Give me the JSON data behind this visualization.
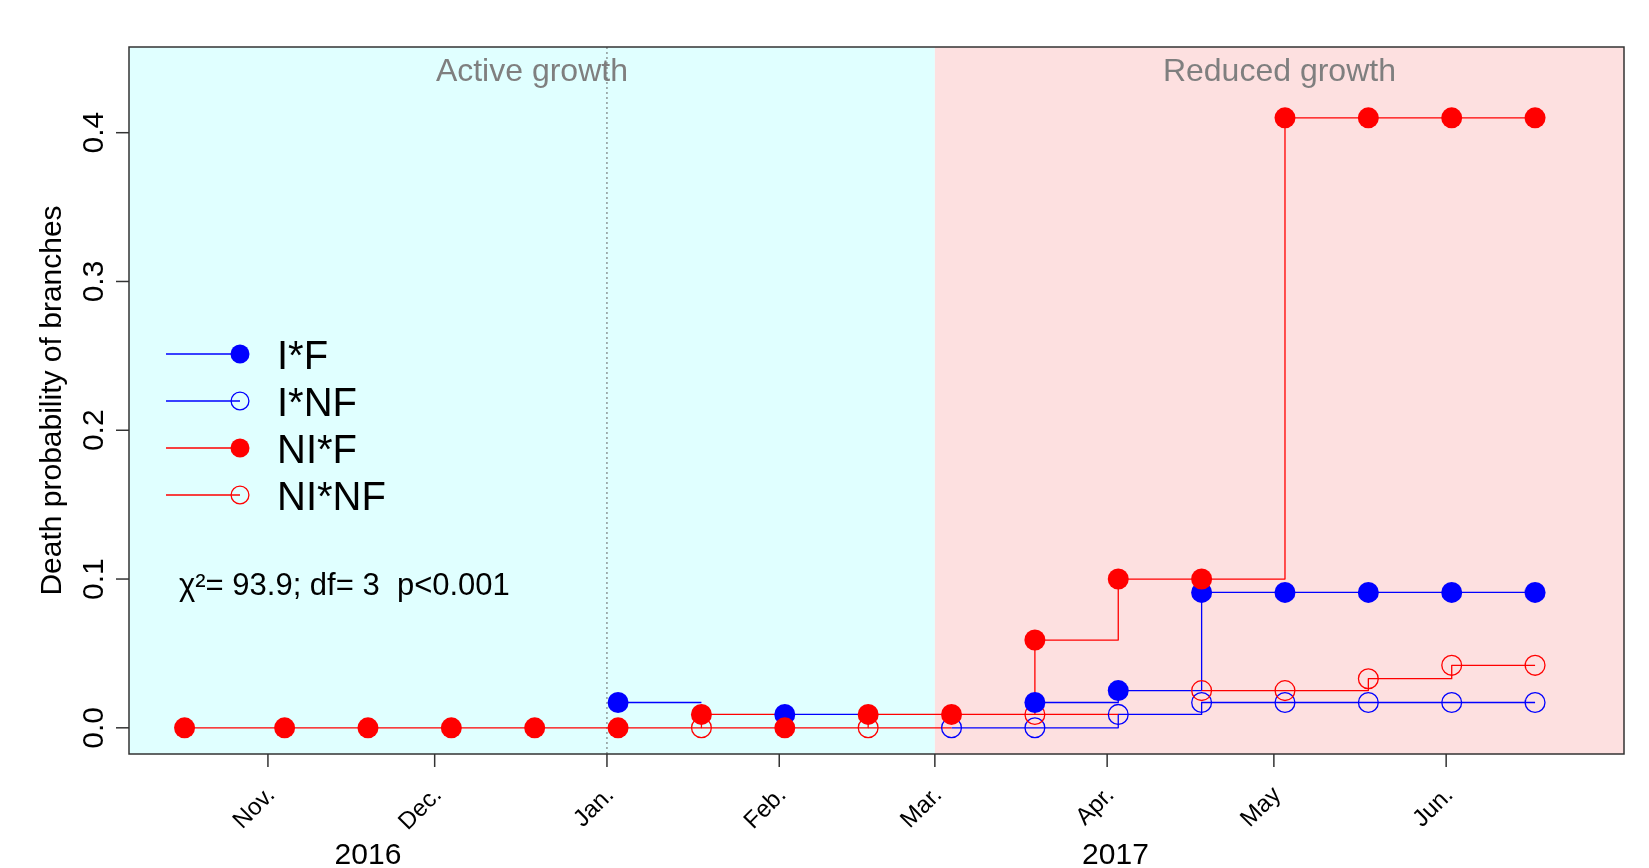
{
  "chart_data": {
    "type": "step",
    "ylabel": "Death probability of branches",
    "x": [
      "2016-10-17",
      "2016-11-04",
      "2016-11-19",
      "2016-12-04",
      "2016-12-19",
      "2017-01-03",
      "2017-01-18",
      "2017-02-02",
      "2017-02-17",
      "2017-03-04",
      "2017-03-19",
      "2017-04-03",
      "2017-04-18",
      "2017-05-03",
      "2017-05-18",
      "2017-06-02",
      "2017-06-17"
    ],
    "series": [
      {
        "name": "I*F",
        "color": "#0000ff",
        "marker": "circle",
        "values": [
          null,
          null,
          null,
          null,
          null,
          0.017,
          null,
          0.009,
          null,
          null,
          0.017,
          0.025,
          0.091,
          0.091,
          0.091,
          0.091,
          0.091
        ]
      },
      {
        "name": "I*NF",
        "color": "#0000ff",
        "marker": "circle-open",
        "values": [
          null,
          null,
          null,
          null,
          null,
          null,
          null,
          null,
          null,
          0,
          0,
          0.009,
          0.017,
          0.017,
          0.017,
          0.017,
          0.017
        ]
      },
      {
        "name": "NI*F",
        "color": "#ff0000",
        "marker": "circle",
        "values": [
          0,
          0,
          0,
          0,
          0,
          0,
          0.009,
          0,
          0.009,
          0.009,
          0.059,
          0.1,
          0.1,
          0.41,
          0.41,
          0.41,
          0.41
        ]
      },
      {
        "name": "NI*NF",
        "color": "#ff0000",
        "marker": "circle-open",
        "values": [
          null,
          null,
          null,
          null,
          null,
          null,
          0,
          null,
          0,
          null,
          0.009,
          null,
          0.025,
          0.025,
          0.033,
          0.042,
          0.042
        ]
      }
    ],
    "xlim": [
      "2016-10-07",
      "2017-07-03"
    ],
    "xticks": [
      {
        "value": "2016-11-01",
        "label": "Nov."
      },
      {
        "value": "2016-12-01",
        "label": "Dec."
      },
      {
        "value": "2017-01-01",
        "label": "Jan."
      },
      {
        "value": "2017-02-01",
        "label": "Feb."
      },
      {
        "value": "2017-03-01",
        "label": "Mar."
      },
      {
        "value": "2017-04-01",
        "label": "Apr."
      },
      {
        "value": "2017-05-01",
        "label": "May"
      },
      {
        "value": "2017-06-01",
        "label": "Jun."
      }
    ],
    "ylim": [
      -0.0176,
      0.4576
    ],
    "yticks": [
      {
        "value": 0,
        "label": "0.0"
      },
      0.1,
      0.2,
      0.3,
      0.4
    ],
    "bands": [
      {
        "axis": "x",
        "from": "2016-10-07",
        "to": "2017-03-01",
        "label": "Active growth",
        "color": "#e0ffff"
      },
      {
        "axis": "x",
        "from": "2017-03-01",
        "to": "2017-07-03",
        "label": "Reduced growth",
        "color": "#fde0e0"
      }
    ],
    "ref_lines": [
      {
        "axis": "x",
        "value": "2017-01-01",
        "line_style": "dotted",
        "color": "#666666"
      }
    ],
    "legend": "left",
    "annotations": [
      "χ²= 93.9; df= 3  p<0.001",
      "2016",
      "2017"
    ]
  }
}
